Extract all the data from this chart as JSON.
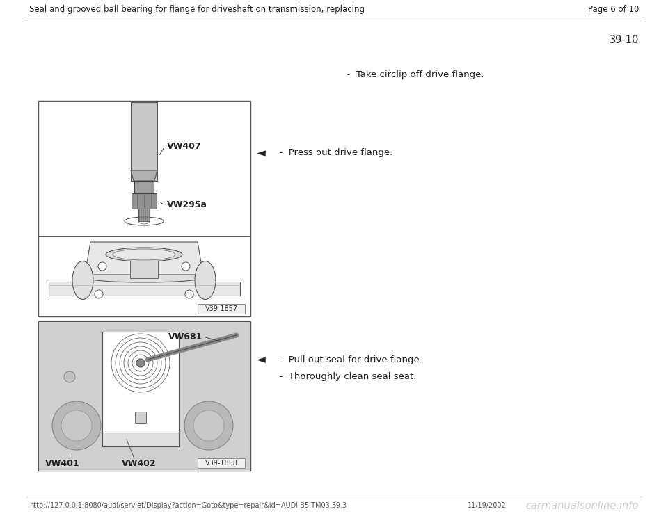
{
  "bg_color": "#ffffff",
  "header_text": "Seal and grooved ball bearing for flange for driveshaft on transmission, replacing",
  "page_text": "Page 6 of 10",
  "section_number": "39-10",
  "instruction1": "  -  Take circlip off drive flange.",
  "instruction2": "  -  Press out drive flange.",
  "instruction3": "  -  Pull out seal for drive flange.",
  "instruction4": "  -  Thoroughly clean seal seat.",
  "image1_label": "V39-1857",
  "image2_label": "V39-1858",
  "tool_label1_1": "VW407",
  "tool_label1_2": "VW295a",
  "tool_label2_1": "VW681",
  "tool_label2_2": "VW401",
  "tool_label2_3": "VW402",
  "footer_url": "http://127.0.0.1:8080/audi/servlet/Display?action=Goto&type=repair&id=AUDI.B5.TM03.39.3",
  "footer_date": "11/19/2002",
  "footer_watermark": "carmanualsonline.info",
  "arrow_symbol": "◄",
  "header_fontsize": 8.5,
  "body_fontsize": 9.5,
  "label_fontsize": 9.0,
  "footer_fontsize": 7.0,
  "watermark_fontsize": 10.5
}
